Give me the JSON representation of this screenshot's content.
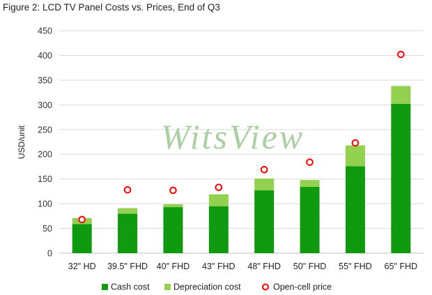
{
  "title": "Figure 2: LCD TV Panel Costs vs. Prices, End of Q3",
  "watermark": "WitsView",
  "colors": {
    "cash": "#109a10",
    "depreciation": "#92d050",
    "open_cell": "#ff0000",
    "grid": "#d9d9d9",
    "watermark": "#a9cfa2"
  },
  "chart_data": {
    "type": "bar",
    "stacked": true,
    "ylabel": "USD/unit",
    "ylim": [
      0,
      450
    ],
    "yticks": [
      0,
      50,
      100,
      150,
      200,
      250,
      300,
      350,
      400,
      450
    ],
    "grid": true,
    "legend_position": "bottom",
    "categories": [
      "32\" HD",
      "39.5\" FHD",
      "40\" FHD",
      "43\" FHD",
      "48\" FHD",
      "50\" FHD",
      "55\" FHD",
      "65\" FHD"
    ],
    "series": [
      {
        "name": "Cash cost",
        "kind": "bar",
        "values": [
          59,
          80,
          93,
          95,
          127,
          134,
          176,
          302
        ]
      },
      {
        "name": "Depreciation cost",
        "kind": "bar",
        "values": [
          12,
          11,
          6,
          24,
          24,
          14,
          42,
          36
        ]
      },
      {
        "name": "Open-cell price",
        "kind": "marker",
        "values": [
          68,
          128,
          127,
          133,
          169,
          184,
          223,
          402
        ]
      }
    ]
  }
}
